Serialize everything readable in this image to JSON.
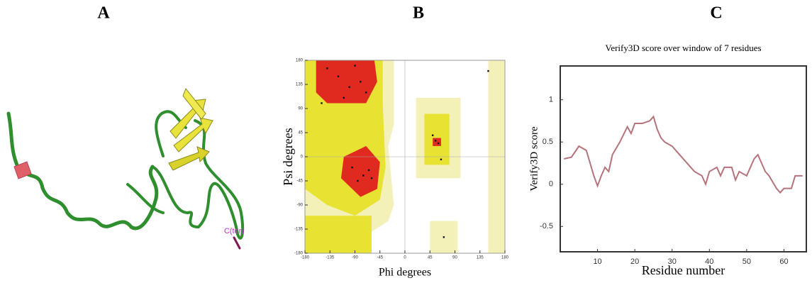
{
  "panel_labels": [
    "A",
    "B",
    "C"
  ],
  "structure_label": "C(ter)",
  "chart_data": [
    {
      "type": "scatter",
      "xlabel": "Phi degrees",
      "ylabel": "Psi degrees",
      "xlim": [
        -180,
        180
      ],
      "ylim": [
        -180,
        180
      ],
      "xticks": [
        -180,
        -135,
        -90,
        -45,
        0,
        45,
        90,
        135,
        180
      ],
      "yticks": [
        -180,
        -135,
        -90,
        -45,
        0,
        45,
        90,
        135,
        180
      ],
      "color": "#111111",
      "x": [
        -120,
        -100,
        -80,
        -140,
        -70,
        -110,
        -90,
        -60,
        -75,
        -65,
        -95,
        -85,
        55,
        60,
        50,
        65,
        -150,
        150,
        70
      ],
      "y": [
        150,
        130,
        140,
        165,
        120,
        110,
        170,
        -40,
        -35,
        -25,
        -20,
        -45,
        30,
        25,
        40,
        -5,
        100,
        160,
        -150
      ]
    },
    {
      "type": "line",
      "title": "Verify3D score over window of 7 residues",
      "xlabel": "Residue number",
      "ylabel": "Verify3D score",
      "xlim": [
        0,
        66
      ],
      "ylim": [
        -0.8,
        1.4
      ],
      "xticks": [
        10,
        20,
        30,
        40,
        50,
        60
      ],
      "yticks": [
        -0.5,
        0,
        0.5,
        1
      ],
      "color": "#b5737c",
      "x": [
        1,
        3,
        5,
        7,
        9,
        10,
        11,
        12,
        13,
        14,
        16,
        18,
        19,
        20,
        22,
        24,
        25,
        26,
        27,
        28,
        30,
        32,
        34,
        36,
        38,
        39,
        40,
        42,
        43,
        44,
        46,
        47,
        48,
        50,
        52,
        53,
        55,
        56,
        58,
        59,
        60,
        62,
        63,
        65
      ],
      "values": [
        0.3,
        0.32,
        0.45,
        0.4,
        0.1,
        -0.02,
        0.1,
        0.2,
        0.15,
        0.35,
        0.5,
        0.68,
        0.6,
        0.72,
        0.72,
        0.75,
        0.8,
        0.65,
        0.55,
        0.5,
        0.45,
        0.35,
        0.25,
        0.15,
        0.1,
        0.0,
        0.15,
        0.2,
        0.1,
        0.2,
        0.2,
        0.05,
        0.15,
        0.1,
        0.3,
        0.35,
        0.15,
        0.1,
        -0.05,
        -0.1,
        -0.05,
        -0.05,
        0.1,
        0.1
      ]
    }
  ]
}
